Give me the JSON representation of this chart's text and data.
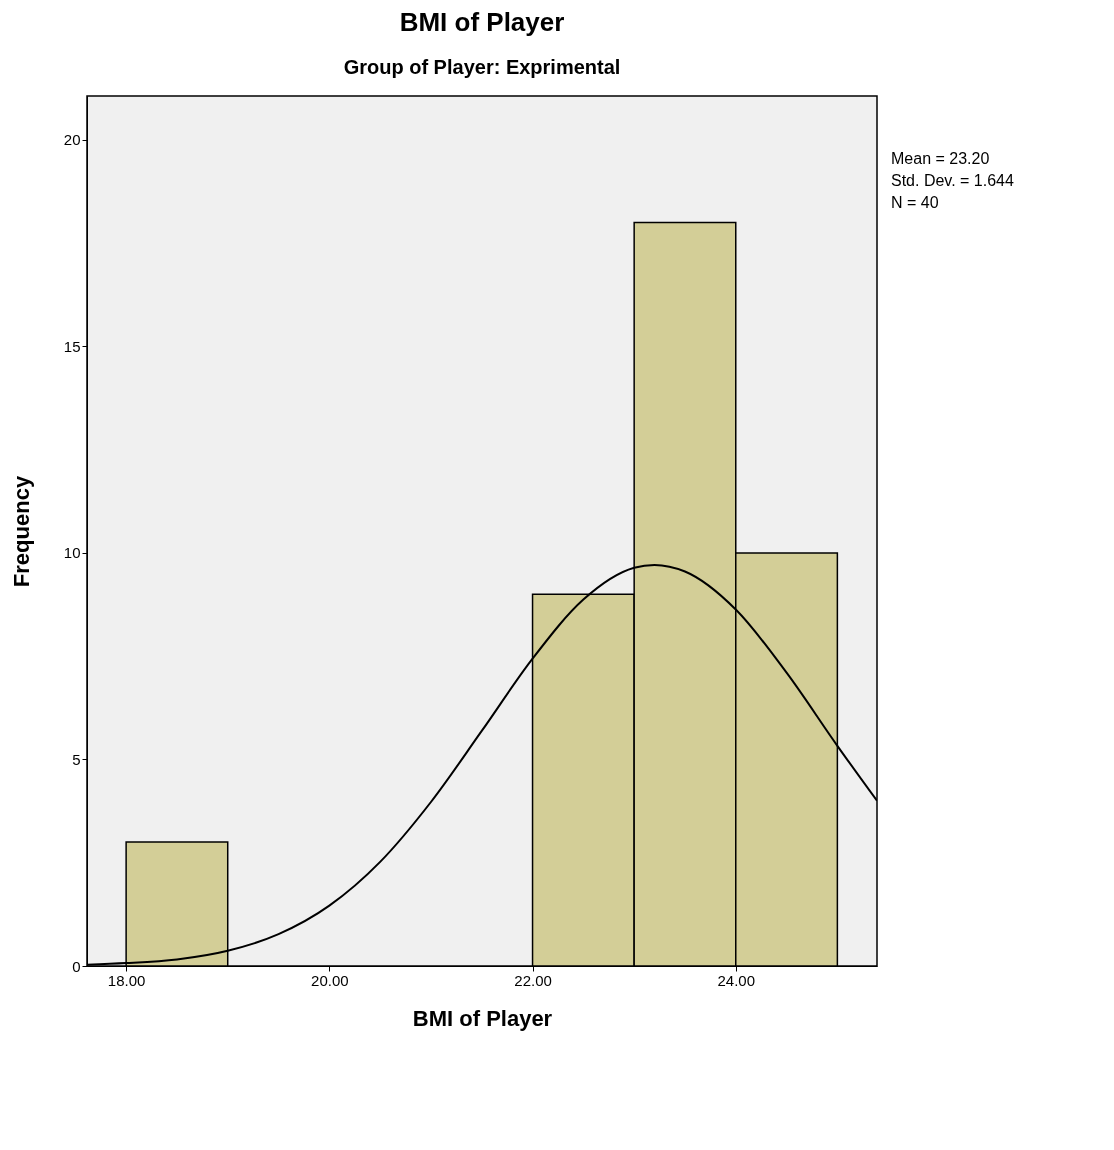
{
  "chart_data": {
    "type": "histogram",
    "title": "BMI of Player",
    "subtitle": "Group of Player: Exprimental",
    "xlabel": "BMI of Player",
    "ylabel": "Frequency",
    "bins": [
      18,
      19,
      20,
      21,
      22,
      23,
      24,
      25
    ],
    "values": [
      3,
      0,
      0,
      0,
      9,
      18,
      10
    ],
    "color": "#d3ce97",
    "series": [
      {
        "type": "line",
        "color": "#000000",
        "x": [
          17.615,
          18,
          18.5,
          19,
          19.5,
          20,
          20.5,
          21,
          21.5,
          22,
          22.5,
          23,
          23.2,
          23.5,
          24,
          24.5,
          25,
          25.39
        ],
        "values": [
          0.03,
          0.07,
          0.16,
          0.37,
          0.77,
          1.46,
          2.52,
          3.97,
          5.69,
          7.44,
          8.87,
          9.64,
          9.71,
          9.55,
          8.63,
          7.1,
          5.33,
          4.0
        ]
      }
    ],
    "xlim": [
      17.615,
      25.39
    ],
    "xticks": [
      {
        "value": 18,
        "label": "18.00"
      },
      {
        "value": 20,
        "label": "20.00"
      },
      {
        "value": 22,
        "label": "22.00"
      },
      {
        "value": 24,
        "label": "24.00"
      }
    ],
    "ylim": [
      0,
      21.06
    ],
    "yticks": [
      0,
      5,
      10,
      15,
      20
    ],
    "annotations": [
      "Mean = 23.20",
      "Std. Dev. = 1.644",
      "N = 40"
    ]
  }
}
